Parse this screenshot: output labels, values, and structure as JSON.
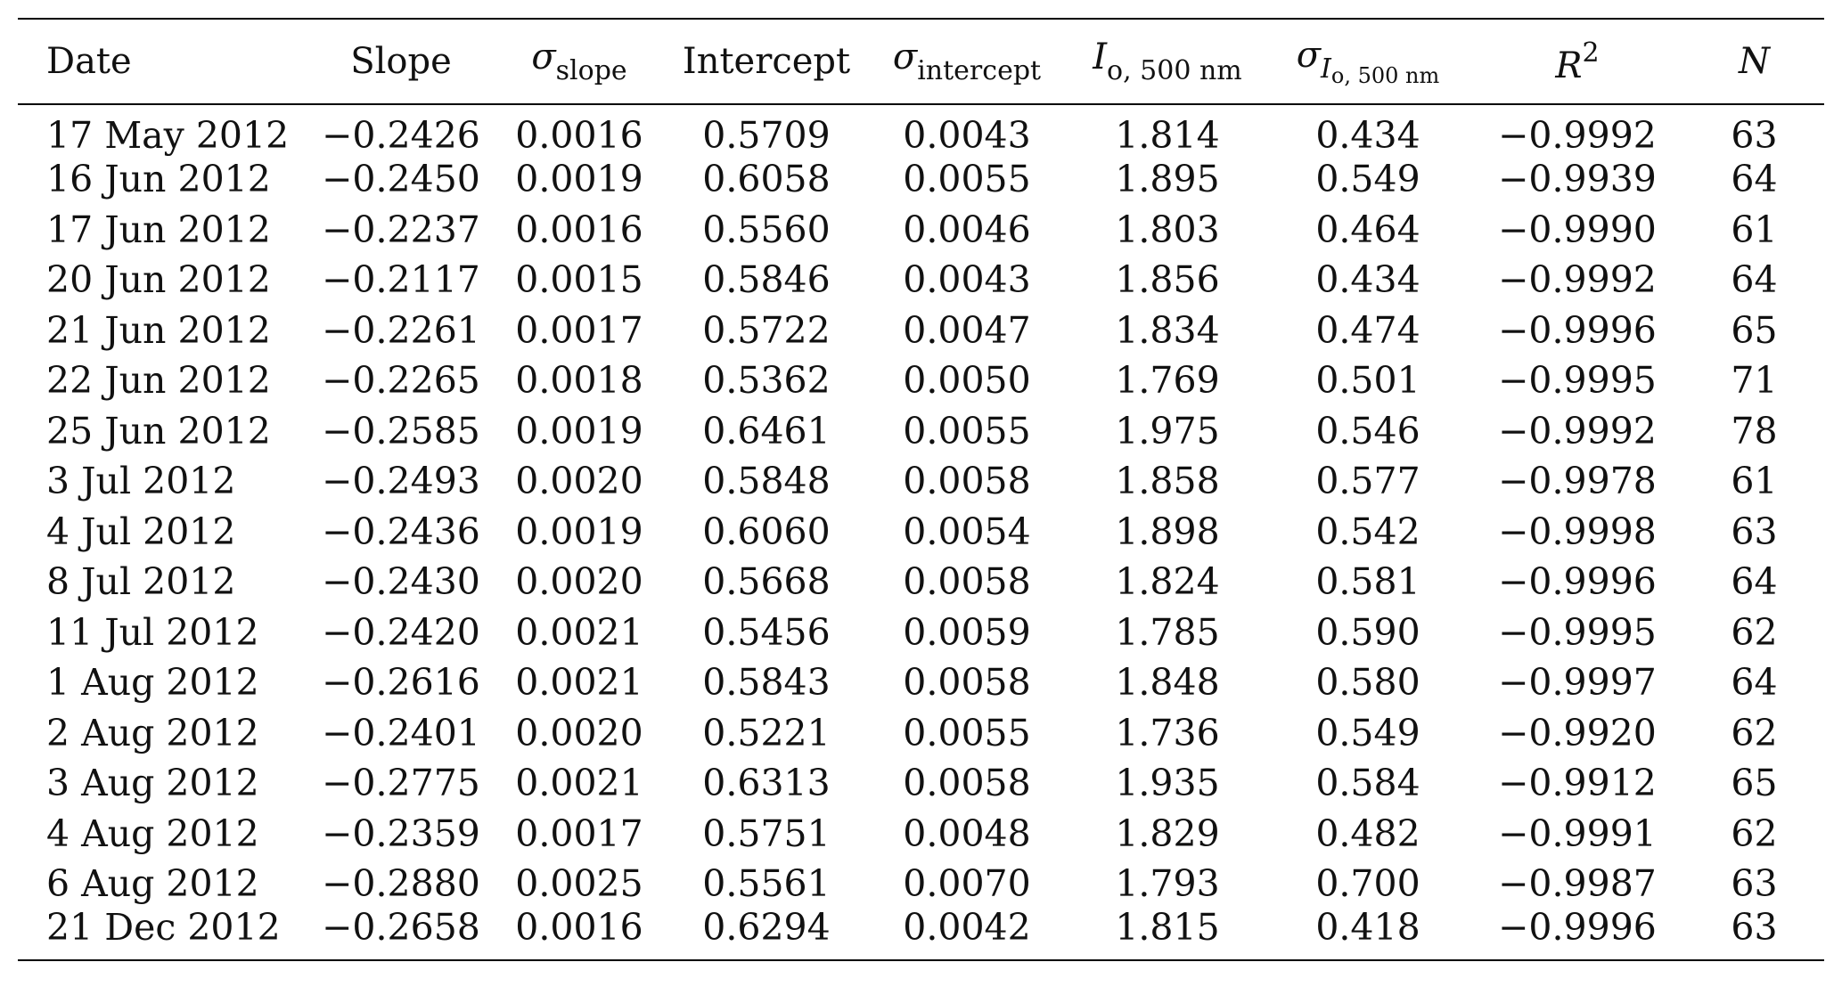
{
  "table": {
    "headers": {
      "date": "Date",
      "slope": "Slope",
      "sigma_slope": {
        "symbol": "σ",
        "sub": "slope"
      },
      "intercept": "Intercept",
      "sigma_intercept": {
        "symbol": "σ",
        "sub": "intercept"
      },
      "io": {
        "symbol": "I",
        "sub": "o, 500 nm"
      },
      "sigma_io": {
        "symbol": "σ",
        "sub_symbol": "I",
        "sub": "o, 500 nm"
      },
      "r2": {
        "symbol": "R",
        "sup": "2"
      },
      "n": "N"
    },
    "rows": [
      [
        "17 May 2012",
        "−0.2426",
        "0.0016",
        "0.5709",
        "0.0043",
        "1.814",
        "0.434",
        "−0.9992",
        "63"
      ],
      [
        "16 Jun 2012",
        "−0.2450",
        "0.0019",
        "0.6058",
        "0.0055",
        "1.895",
        "0.549",
        "−0.9939",
        "64"
      ],
      [
        "17 Jun 2012",
        "−0.2237",
        "0.0016",
        "0.5560",
        "0.0046",
        "1.803",
        "0.464",
        "−0.9990",
        "61"
      ],
      [
        "20 Jun 2012",
        "−0.2117",
        "0.0015",
        "0.5846",
        "0.0043",
        "1.856",
        "0.434",
        "−0.9992",
        "64"
      ],
      [
        "21 Jun 2012",
        "−0.2261",
        "0.0017",
        "0.5722",
        "0.0047",
        "1.834",
        "0.474",
        "−0.9996",
        "65"
      ],
      [
        "22 Jun 2012",
        "−0.2265",
        "0.0018",
        "0.5362",
        "0.0050",
        "1.769",
        "0.501",
        "−0.9995",
        "71"
      ],
      [
        "25 Jun 2012",
        "−0.2585",
        "0.0019",
        "0.6461",
        "0.0055",
        "1.975",
        "0.546",
        "−0.9992",
        "78"
      ],
      [
        "3 Jul 2012",
        "−0.2493",
        "0.0020",
        "0.5848",
        "0.0058",
        "1.858",
        "0.577",
        "−0.9978",
        "61"
      ],
      [
        "4 Jul 2012",
        "−0.2436",
        "0.0019",
        "0.6060",
        "0.0054",
        "1.898",
        "0.542",
        "−0.9998",
        "63"
      ],
      [
        "8 Jul 2012",
        "−0.2430",
        "0.0020",
        "0.5668",
        "0.0058",
        "1.824",
        "0.581",
        "−0.9996",
        "64"
      ],
      [
        "11 Jul 2012",
        "−0.2420",
        "0.0021",
        "0.5456",
        "0.0059",
        "1.785",
        "0.590",
        "−0.9995",
        "62"
      ],
      [
        "1 Aug 2012",
        "−0.2616",
        "0.0021",
        "0.5843",
        "0.0058",
        "1.848",
        "0.580",
        "−0.9997",
        "64"
      ],
      [
        "2 Aug 2012",
        "−0.2401",
        "0.0020",
        "0.5221",
        "0.0055",
        "1.736",
        "0.549",
        "−0.9920",
        "62"
      ],
      [
        "3 Aug 2012",
        "−0.2775",
        "0.0021",
        "0.6313",
        "0.0058",
        "1.935",
        "0.584",
        "−0.9912",
        "65"
      ],
      [
        "4 Aug 2012",
        "−0.2359",
        "0.0017",
        "0.5751",
        "0.0048",
        "1.829",
        "0.482",
        "−0.9991",
        "62"
      ],
      [
        "6 Aug 2012",
        "−0.2880",
        "0.0025",
        "0.5561",
        "0.0070",
        "1.793",
        "0.700",
        "−0.9987",
        "63"
      ],
      [
        "21 Dec 2012",
        "−0.2658",
        "0.0016",
        "0.6294",
        "0.0042",
        "1.815",
        "0.418",
        "−0.9996",
        "63"
      ]
    ]
  }
}
